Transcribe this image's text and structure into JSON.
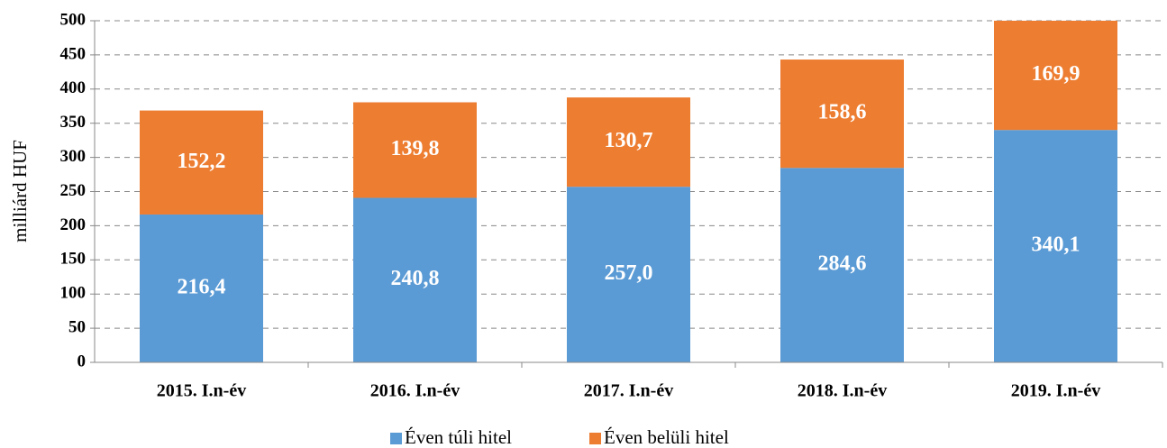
{
  "chart_data": {
    "type": "stacked_bar",
    "y_label": "milliárd HUF",
    "categories": [
      "2015. I.n-év",
      "2016. I.n-év",
      "2017. I.n-év",
      "2018. I.n-év",
      "2019. I.n-év"
    ],
    "series": [
      {
        "name": "Éven túli hitel",
        "color": "#5b9bd5",
        "values": [
          216.4,
          240.8,
          257.0,
          284.6,
          340.1
        ],
        "value_labels": [
          "216,4",
          "240,8",
          "257,0",
          "284,6",
          "340,1"
        ]
      },
      {
        "name": "Éven belüli hitel",
        "color": "#ed7d31",
        "values": [
          152.2,
          139.8,
          130.7,
          158.6,
          169.9
        ],
        "value_labels": [
          "152,2",
          "139,8",
          "130,7",
          "158,6",
          "169,9"
        ]
      }
    ],
    "ylim": [
      0,
      500
    ],
    "yticks": [
      0,
      50,
      100,
      150,
      200,
      250,
      300,
      350,
      400,
      450,
      500
    ],
    "grid": true,
    "legend": "bottom"
  }
}
